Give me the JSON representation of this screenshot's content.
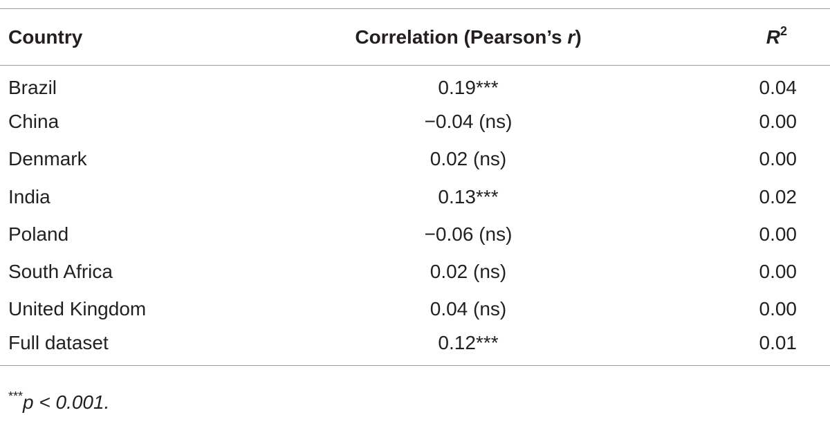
{
  "table": {
    "columns": [
      "Country",
      [
        "Correlation (Pearson’s ",
        "r",
        ")"
      ],
      [
        "R",
        "2"
      ]
    ],
    "rows": [
      [
        "Brazil",
        "0.19***",
        "0.04"
      ],
      [
        "China",
        "−0.04 (ns)",
        "0.00"
      ],
      [
        "Denmark",
        "0.02 (ns)",
        "0.00"
      ],
      [
        "India",
        "0.13***",
        "0.02"
      ],
      [
        "Poland",
        "−0.06 (ns)",
        "0.00"
      ],
      [
        "South Africa",
        "0.02 (ns)",
        "0.00"
      ],
      [
        "United Kingdom",
        "0.04 (ns)",
        "0.00"
      ],
      [
        "Full dataset",
        "0.12***",
        "0.01"
      ]
    ]
  },
  "footnote": [
    "***",
    "p",
    " < 0.001."
  ]
}
